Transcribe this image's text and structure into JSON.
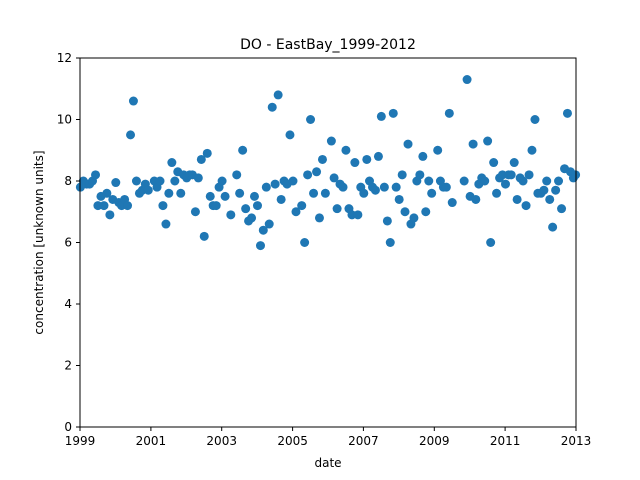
{
  "chart_data": {
    "type": "scatter",
    "title": "DO - EastBay_1999-2012",
    "xlabel": "date",
    "ylabel": "concentration [unknown units]",
    "xlim": [
      "1999-01-01",
      "2013-01-01"
    ],
    "ylim": [
      0,
      12
    ],
    "xticks": [
      "1999",
      "2001",
      "2003",
      "2005",
      "2007",
      "2009",
      "2011",
      "2013"
    ],
    "yticks": [
      "0",
      "2",
      "4",
      "6",
      "8",
      "10",
      "12"
    ],
    "grid": false,
    "marker_color": "#1f77b4",
    "points": [
      [
        "1999-01-05",
        7.8
      ],
      [
        "1999-02-05",
        8.0
      ],
      [
        "1999-03-10",
        7.9
      ],
      [
        "1999-04-10",
        7.9
      ],
      [
        "1999-05-10",
        8.0
      ],
      [
        "1999-06-10",
        8.2
      ],
      [
        "1999-07-05",
        7.2
      ],
      [
        "1999-08-05",
        7.5
      ],
      [
        "1999-09-05",
        7.2
      ],
      [
        "1999-10-05",
        7.6
      ],
      [
        "1999-11-05",
        6.9
      ],
      [
        "1999-12-05",
        7.4
      ],
      [
        "2000-01-05",
        7.95
      ],
      [
        "2000-02-05",
        7.3
      ],
      [
        "2000-03-05",
        7.2
      ],
      [
        "2000-04-05",
        7.4
      ],
      [
        "2000-05-05",
        7.2
      ],
      [
        "2000-06-05",
        9.5
      ],
      [
        "2000-07-05",
        10.6
      ],
      [
        "2000-08-05",
        8.0
      ],
      [
        "2000-09-05",
        7.6
      ],
      [
        "2000-10-05",
        7.7
      ],
      [
        "2000-11-05",
        7.9
      ],
      [
        "2000-12-05",
        7.7
      ],
      [
        "2001-02-05",
        8.0
      ],
      [
        "2001-03-05",
        7.8
      ],
      [
        "2001-04-05",
        8.0
      ],
      [
        "2001-05-05",
        7.2
      ],
      [
        "2001-06-05",
        6.6
      ],
      [
        "2001-07-05",
        7.6
      ],
      [
        "2001-08-05",
        8.6
      ],
      [
        "2001-09-05",
        8.0
      ],
      [
        "2001-10-05",
        8.3
      ],
      [
        "2001-11-05",
        7.6
      ],
      [
        "2001-12-05",
        8.2
      ],
      [
        "2002-01-05",
        8.1
      ],
      [
        "2002-02-05",
        8.2
      ],
      [
        "2002-03-05",
        8.2
      ],
      [
        "2002-04-05",
        7.0
      ],
      [
        "2002-05-05",
        8.1
      ],
      [
        "2002-06-05",
        8.7
      ],
      [
        "2002-07-05",
        6.2
      ],
      [
        "2002-08-05",
        8.9
      ],
      [
        "2002-09-05",
        7.5
      ],
      [
        "2002-10-05",
        7.2
      ],
      [
        "2002-11-05",
        7.2
      ],
      [
        "2002-12-05",
        7.8
      ],
      [
        "2003-01-05",
        8.0
      ],
      [
        "2003-02-05",
        7.5
      ],
      [
        "2003-04-05",
        6.9
      ],
      [
        "2003-06-05",
        8.2
      ],
      [
        "2003-07-05",
        7.6
      ],
      [
        "2003-08-05",
        9.0
      ],
      [
        "2003-09-05",
        7.1
      ],
      [
        "2003-10-05",
        6.7
      ],
      [
        "2003-11-05",
        6.8
      ],
      [
        "2003-12-05",
        7.5
      ],
      [
        "2004-01-05",
        7.2
      ],
      [
        "2004-02-05",
        5.9
      ],
      [
        "2004-03-05",
        6.4
      ],
      [
        "2004-04-05",
        7.8
      ],
      [
        "2004-05-05",
        6.6
      ],
      [
        "2004-06-05",
        10.4
      ],
      [
        "2004-07-05",
        7.9
      ],
      [
        "2004-08-05",
        10.8
      ],
      [
        "2004-09-05",
        7.4
      ],
      [
        "2004-10-05",
        8.0
      ],
      [
        "2004-11-05",
        7.9
      ],
      [
        "2004-12-05",
        9.5
      ],
      [
        "2005-01-05",
        8.0
      ],
      [
        "2005-02-05",
        7.0
      ],
      [
        "2005-04-05",
        7.2
      ],
      [
        "2005-05-05",
        6.0
      ],
      [
        "2005-06-05",
        8.2
      ],
      [
        "2005-07-05",
        10.0
      ],
      [
        "2005-08-05",
        7.6
      ],
      [
        "2005-09-05",
        8.3
      ],
      [
        "2005-10-05",
        6.8
      ],
      [
        "2005-11-05",
        8.7
      ],
      [
        "2005-12-05",
        7.6
      ],
      [
        "2006-02-05",
        9.3
      ],
      [
        "2006-03-05",
        8.1
      ],
      [
        "2006-04-05",
        7.1
      ],
      [
        "2006-05-05",
        7.9
      ],
      [
        "2006-06-05",
        7.8
      ],
      [
        "2006-07-05",
        9.0
      ],
      [
        "2006-08-05",
        7.1
      ],
      [
        "2006-09-05",
        6.9
      ],
      [
        "2006-10-05",
        8.6
      ],
      [
        "2006-11-05",
        6.9
      ],
      [
        "2006-12-05",
        7.8
      ],
      [
        "2007-01-05",
        7.6
      ],
      [
        "2007-02-05",
        8.7
      ],
      [
        "2007-03-05",
        8.0
      ],
      [
        "2007-04-05",
        7.8
      ],
      [
        "2007-05-05",
        7.7
      ],
      [
        "2007-06-05",
        8.8
      ],
      [
        "2007-07-05",
        10.1
      ],
      [
        "2007-08-05",
        7.8
      ],
      [
        "2007-09-05",
        6.7
      ],
      [
        "2007-10-05",
        6.0
      ],
      [
        "2007-11-05",
        10.2
      ],
      [
        "2007-12-05",
        7.8
      ],
      [
        "2008-01-05",
        7.4
      ],
      [
        "2008-02-05",
        8.2
      ],
      [
        "2008-03-05",
        7.0
      ],
      [
        "2008-04-05",
        9.2
      ],
      [
        "2008-05-05",
        6.6
      ],
      [
        "2008-06-05",
        6.8
      ],
      [
        "2008-07-05",
        8.0
      ],
      [
        "2008-08-05",
        8.2
      ],
      [
        "2008-09-05",
        8.8
      ],
      [
        "2008-10-05",
        7.0
      ],
      [
        "2008-11-05",
        8.0
      ],
      [
        "2008-12-05",
        7.6
      ],
      [
        "2009-02-05",
        9.0
      ],
      [
        "2009-03-05",
        8.0
      ],
      [
        "2009-04-05",
        7.8
      ],
      [
        "2009-05-05",
        7.8
      ],
      [
        "2009-06-05",
        10.2
      ],
      [
        "2009-07-05",
        7.3
      ],
      [
        "2009-11-05",
        8.0
      ],
      [
        "2009-12-05",
        11.3
      ],
      [
        "2010-01-05",
        7.5
      ],
      [
        "2010-02-05",
        9.2
      ],
      [
        "2010-03-05",
        7.4
      ],
      [
        "2010-04-05",
        7.9
      ],
      [
        "2010-05-05",
        8.1
      ],
      [
        "2010-06-05",
        8.0
      ],
      [
        "2010-07-05",
        9.3
      ],
      [
        "2010-08-05",
        6.0
      ],
      [
        "2010-09-05",
        8.6
      ],
      [
        "2010-10-05",
        7.6
      ],
      [
        "2010-11-05",
        8.1
      ],
      [
        "2010-12-05",
        8.2
      ],
      [
        "2011-01-05",
        7.9
      ],
      [
        "2011-02-05",
        8.2
      ],
      [
        "2011-03-05",
        8.2
      ],
      [
        "2011-04-05",
        8.6
      ],
      [
        "2011-05-05",
        7.4
      ],
      [
        "2011-06-05",
        8.1
      ],
      [
        "2011-07-05",
        8.0
      ],
      [
        "2011-08-05",
        7.2
      ],
      [
        "2011-09-05",
        8.2
      ],
      [
        "2011-10-05",
        9.0
      ],
      [
        "2011-11-05",
        10.0
      ],
      [
        "2011-12-05",
        7.6
      ],
      [
        "2012-01-05",
        7.6
      ],
      [
        "2012-02-05",
        7.7
      ],
      [
        "2012-03-05",
        8.0
      ],
      [
        "2012-04-05",
        7.4
      ],
      [
        "2012-05-05",
        6.5
      ],
      [
        "2012-06-05",
        7.7
      ],
      [
        "2012-07-05",
        8.0
      ],
      [
        "2012-08-05",
        7.1
      ],
      [
        "2012-09-05",
        8.4
      ],
      [
        "2012-10-05",
        10.2
      ],
      [
        "2012-11-05",
        8.3
      ],
      [
        "2012-12-05",
        8.1
      ],
      [
        "2012-12-28",
        8.2
      ]
    ]
  }
}
